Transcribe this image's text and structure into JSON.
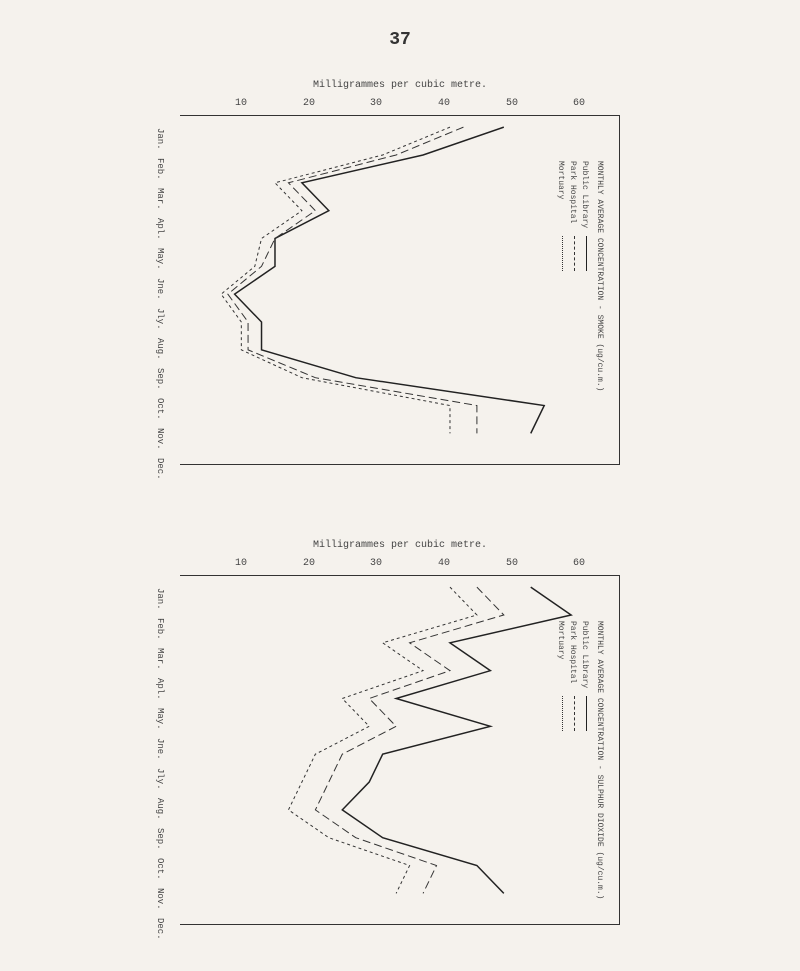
{
  "page_number": "37",
  "chart1": {
    "title": "Milligrammes per cubic metre.",
    "y_axis_title": "MONTHLY AVERAGE CONCENTRATION - SMOKE (ug/cu.m.)",
    "x_ticks": [
      "10",
      "20",
      "30",
      "40",
      "50",
      "60"
    ],
    "y_ticks": [
      "Jan.",
      "Feb.",
      "Mar.",
      "Apl.",
      "May.",
      "Jne.",
      "Jly.",
      "Aug.",
      "Sep.",
      "Oct.",
      "Nov.",
      "Dec."
    ],
    "legend_items": [
      "Public Library",
      "Park Hospital",
      "Mortuary"
    ],
    "legend_styles": [
      "solid",
      "dashed-long",
      "dashed-short"
    ],
    "series": {
      "public_library": {
        "style": "solid",
        "color": "#222222",
        "width": 1.5,
        "values": [
          48,
          36,
          18,
          22,
          14,
          14,
          8,
          12,
          12,
          26,
          54,
          52
        ]
      },
      "park_hospital": {
        "style": "dashed-long",
        "color": "#333333",
        "width": 1,
        "values": [
          42,
          32,
          16,
          20,
          14,
          12,
          7,
          10,
          10,
          20,
          44,
          44
        ]
      },
      "mortuary": {
        "style": "dashed-short",
        "color": "#333333",
        "width": 1,
        "values": [
          40,
          30,
          14,
          18,
          12,
          11,
          6,
          9,
          9,
          18,
          40,
          40
        ]
      }
    },
    "xlim": [
      0,
      65
    ],
    "background": "#f5f2ed",
    "border_color": "#333333"
  },
  "chart2": {
    "title": "Milligrammes per cubic metre.",
    "y_axis_title": "MONTHLY AVERAGE CONCENTRATION - SULPHUR DIOXIDE (ug/cu.m.)",
    "x_ticks": [
      "10",
      "20",
      "30",
      "40",
      "50",
      "60"
    ],
    "y_ticks": [
      "Jan.",
      "Feb.",
      "Mar.",
      "Apl.",
      "May.",
      "Jne.",
      "Jly.",
      "Aug.",
      "Sep.",
      "Oct.",
      "Nov.",
      "Dec."
    ],
    "legend_items": [
      "Public Library",
      "Park Hospital",
      "Mortuary"
    ],
    "legend_styles": [
      "solid",
      "dashed-long",
      "dashed-short"
    ],
    "series": {
      "public_library": {
        "style": "solid",
        "color": "#222222",
        "width": 1.5,
        "values": [
          52,
          58,
          40,
          46,
          32,
          46,
          30,
          28,
          24,
          30,
          44,
          48
        ]
      },
      "park_hospital": {
        "style": "dashed-long",
        "color": "#333333",
        "width": 1,
        "values": [
          44,
          48,
          34,
          40,
          28,
          32,
          24,
          22,
          20,
          26,
          38,
          36
        ]
      },
      "mortuary": {
        "style": "dashed-short",
        "color": "#333333",
        "width": 1,
        "values": [
          40,
          44,
          30,
          36,
          24,
          28,
          20,
          18,
          16,
          22,
          34,
          32
        ]
      }
    },
    "xlim": [
      0,
      65
    ],
    "background": "#f5f2ed",
    "border_color": "#333333"
  }
}
